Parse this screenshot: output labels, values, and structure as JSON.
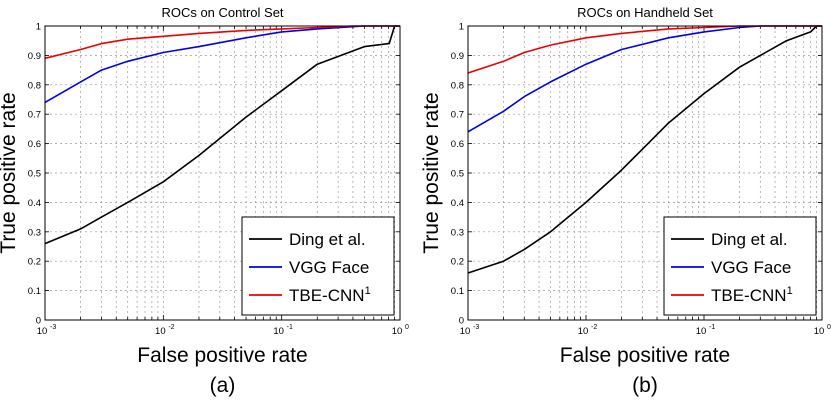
{
  "figure_labels": [
    "(a)",
    "(b)"
  ],
  "chart_data": [
    {
      "type": "line",
      "title": "ROCs on Control Set",
      "xlabel": "False positive rate",
      "ylabel": "True positive rate",
      "xscale": "log",
      "xlim": [
        0.001,
        1
      ],
      "ylim": [
        0,
        1
      ],
      "x_ticks": [
        {
          "base": "10",
          "exp": "-3"
        },
        {
          "base": "10",
          "exp": "-2"
        },
        {
          "base": "10",
          "exp": "-1"
        },
        {
          "base": "10",
          "exp": "0"
        }
      ],
      "y_ticks": [
        "0",
        "0.1",
        "0.2",
        "0.3",
        "0.4",
        "0.5",
        "0.6",
        "0.7",
        "0.8",
        "0.9",
        "1"
      ],
      "grid": true,
      "legend_position": "bottom-right",
      "series": [
        {
          "name": "Ding et al.",
          "sup": "",
          "color": "#000000",
          "x": [
            0.001,
            0.002,
            0.003,
            0.005,
            0.01,
            0.02,
            0.05,
            0.1,
            0.2,
            0.5,
            0.8,
            0.81,
            0.9,
            1.0
          ],
          "y": [
            0.26,
            0.31,
            0.35,
            0.4,
            0.47,
            0.56,
            0.69,
            0.78,
            0.87,
            0.93,
            0.94,
            0.94,
            1.0,
            1.0
          ]
        },
        {
          "name": "VGG Face",
          "sup": "",
          "color": "#0000ee",
          "x": [
            0.001,
            0.002,
            0.003,
            0.005,
            0.01,
            0.02,
            0.05,
            0.1,
            0.2,
            0.5,
            1.0
          ],
          "y": [
            0.74,
            0.81,
            0.85,
            0.88,
            0.91,
            0.93,
            0.96,
            0.98,
            0.99,
            1.0,
            1.0
          ]
        },
        {
          "name": "TBE-CNN",
          "sup": "1",
          "color": "#ee0000",
          "x": [
            0.001,
            0.002,
            0.003,
            0.005,
            0.01,
            0.02,
            0.05,
            0.1,
            0.2,
            0.4,
            1.0
          ],
          "y": [
            0.89,
            0.92,
            0.94,
            0.955,
            0.965,
            0.975,
            0.985,
            0.99,
            0.995,
            1.0,
            1.0
          ]
        }
      ]
    },
    {
      "type": "line",
      "title": "ROCs on Handheld Set",
      "xlabel": "False positive rate",
      "ylabel": "True positive rate",
      "xscale": "log",
      "xlim": [
        0.001,
        1
      ],
      "ylim": [
        0,
        1
      ],
      "x_ticks": [
        {
          "base": "10",
          "exp": "-3"
        },
        {
          "base": "10",
          "exp": "-2"
        },
        {
          "base": "10",
          "exp": "-1"
        },
        {
          "base": "10",
          "exp": "0"
        }
      ],
      "y_ticks": [
        "0",
        "0.1",
        "0.2",
        "0.3",
        "0.4",
        "0.5",
        "0.6",
        "0.7",
        "0.8",
        "0.9",
        "1"
      ],
      "grid": true,
      "legend_position": "bottom-right",
      "series": [
        {
          "name": "Ding et al.",
          "sup": "",
          "color": "#000000",
          "x": [
            0.001,
            0.002,
            0.003,
            0.005,
            0.01,
            0.02,
            0.05,
            0.1,
            0.2,
            0.5,
            0.8,
            0.9,
            1.0
          ],
          "y": [
            0.16,
            0.2,
            0.24,
            0.3,
            0.4,
            0.51,
            0.67,
            0.77,
            0.86,
            0.95,
            0.98,
            1.0,
            1.0
          ]
        },
        {
          "name": "VGG Face",
          "sup": "",
          "color": "#0000ee",
          "x": [
            0.001,
            0.002,
            0.003,
            0.005,
            0.01,
            0.02,
            0.05,
            0.1,
            0.2,
            0.3,
            1.0
          ],
          "y": [
            0.64,
            0.71,
            0.76,
            0.81,
            0.87,
            0.92,
            0.96,
            0.98,
            0.995,
            1.0,
            1.0
          ]
        },
        {
          "name": "TBE-CNN",
          "sup": "1",
          "color": "#ee0000",
          "x": [
            0.001,
            0.002,
            0.003,
            0.005,
            0.01,
            0.02,
            0.05,
            0.1,
            0.2,
            1.0
          ],
          "y": [
            0.84,
            0.88,
            0.91,
            0.935,
            0.96,
            0.975,
            0.99,
            0.995,
            1.0,
            1.0
          ]
        }
      ]
    }
  ]
}
